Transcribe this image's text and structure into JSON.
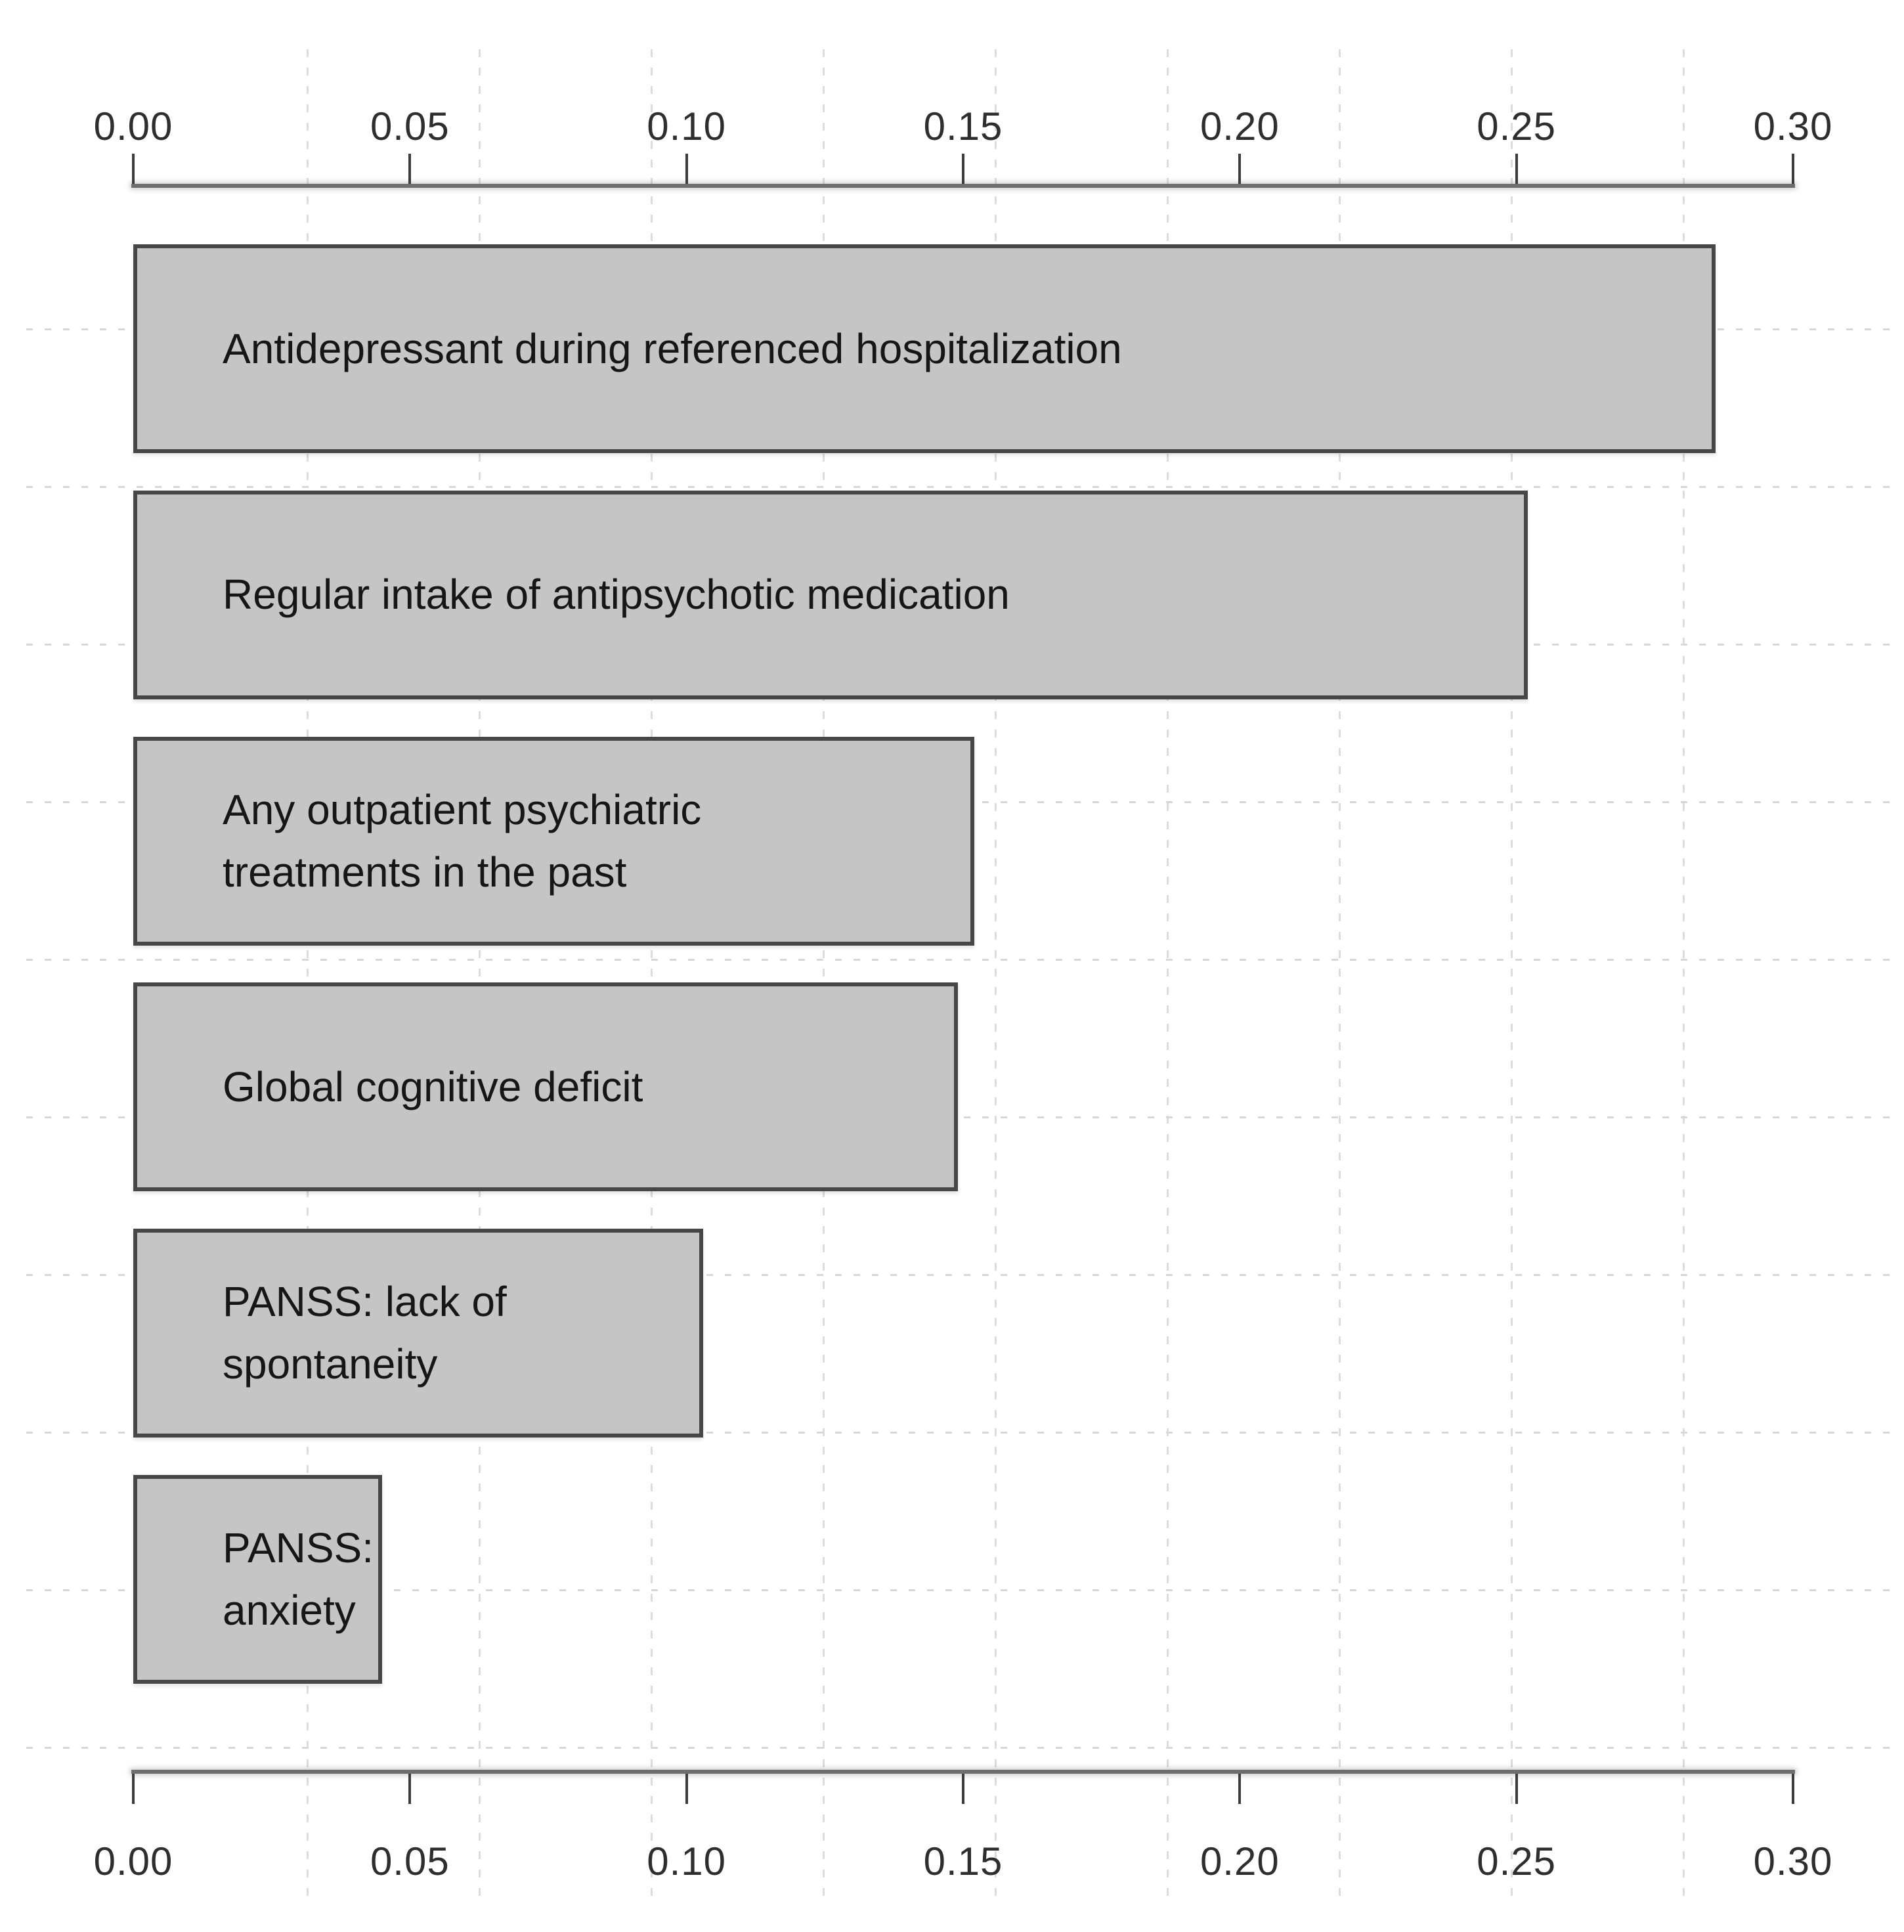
{
  "chart_data": {
    "type": "bar",
    "orientation": "horizontal",
    "categories": [
      "Antidepressant during referenced hospitalization",
      "Regular intake of antipsychotic medication",
      "Any outpatient psychiatric\ntreatments in the past",
      "Global cognitive deficit",
      "PANSS: lack of\nspontaneity",
      "PANSS:\nanxiety"
    ],
    "values": [
      0.286,
      0.252,
      0.152,
      0.149,
      0.103,
      0.045
    ],
    "xlim": [
      0,
      0.3
    ],
    "x_tick_values": [
      0.0,
      0.05,
      0.1,
      0.15,
      0.2,
      0.25,
      0.3
    ],
    "x_tick_labels": [
      "0.00",
      "0.05",
      "0.10",
      "0.15",
      "0.20",
      "0.25",
      "0.30"
    ],
    "axes": [
      "top",
      "bottom"
    ],
    "legend": "none",
    "grid": "faint dotted grid",
    "colors": {
      "bar_fill": "#c5c5c5",
      "bar_border": "#474747",
      "axis_line": "#6e6e6e",
      "tick_mark": "#3d3d3d",
      "tick_text": "#2e2e2e",
      "bar_label_text": "#161616",
      "grid_vertical": "#dcdcdc",
      "grid_horizontal": "#d8d8d8"
    }
  }
}
